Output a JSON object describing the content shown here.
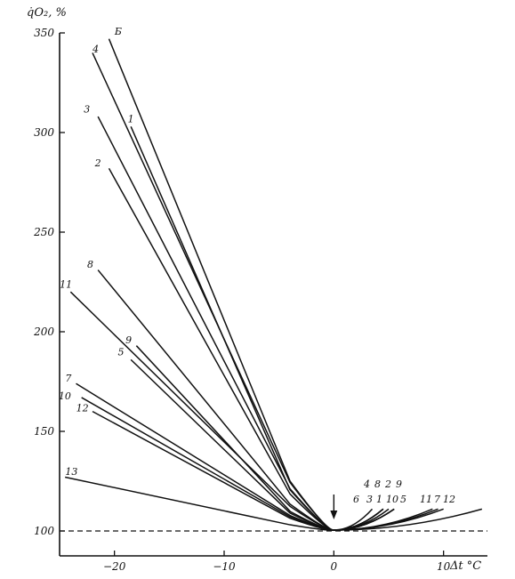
{
  "chart_data": {
    "type": "line",
    "ylabel": "q̇O₂, %",
    "xlabel": "Δt °C",
    "xlim": [
      -25,
      14
    ],
    "ylim": [
      100,
      350
    ],
    "x_ticks": [
      -20,
      -10,
      0,
      10
    ],
    "y_ticks": [
      100,
      150,
      200,
      250,
      300,
      350
    ],
    "x_tick_labels": [
      "−20",
      "−10",
      "0",
      "10"
    ],
    "y_tick_labels": [
      "100",
      "150",
      "200",
      "250",
      "300",
      "350"
    ],
    "baseline": {
      "y": 100,
      "style": "dashed"
    },
    "arrow_at_x": 0,
    "grid": false,
    "series": [
      {
        "name": "1",
        "left": [
          -18.5,
          303
        ],
        "right": [
          4.5,
          111
        ]
      },
      {
        "name": "2",
        "left": [
          -20.5,
          282
        ],
        "right": [
          4.5,
          111
        ]
      },
      {
        "name": "3",
        "left": [
          -21.5,
          308
        ],
        "right": [
          4.5,
          111
        ]
      },
      {
        "name": "4",
        "left": [
          -22,
          340
        ],
        "right": [
          4.5,
          111
        ]
      },
      {
        "name": "5",
        "left": [
          -18.5,
          186
        ],
        "right": [
          5.5,
          111
        ]
      },
      {
        "name": "6",
        "left": [
          -20.5,
          347
        ],
        "right": [
          3.5,
          111
        ]
      },
      {
        "name": "7",
        "left": [
          -23.5,
          174
        ],
        "right": [
          9.5,
          111
        ]
      },
      {
        "name": "8",
        "left": [
          -21.5,
          231
        ],
        "right": [
          5,
          111
        ]
      },
      {
        "name": "9",
        "left": [
          -18,
          193
        ],
        "right": [
          5.5,
          111
        ]
      },
      {
        "name": "10",
        "left": [
          -23,
          167
        ],
        "right": [
          5.5,
          111
        ]
      },
      {
        "name": "11",
        "left": [
          -24,
          220
        ],
        "right": [
          9,
          111
        ]
      },
      {
        "name": "12",
        "left": [
          -22,
          160
        ],
        "right": [
          10,
          111
        ]
      },
      {
        "name": "13",
        "left": [
          -24.5,
          127
        ],
        "right": [
          13.5,
          111
        ]
      }
    ],
    "left_labels": [
      {
        "text": "Б",
        "x": -19.5,
        "y": 350
      },
      {
        "text": "4",
        "x": -21.5,
        "y": 341
      },
      {
        "text": "1",
        "x": -18.3,
        "y": 306
      },
      {
        "text": "3",
        "x": -22.3,
        "y": 311
      },
      {
        "text": "2",
        "x": -21.3,
        "y": 284
      },
      {
        "text": "8",
        "x": -22.0,
        "y": 233
      },
      {
        "text": "11",
        "x": -24.5,
        "y": 223
      },
      {
        "text": "9",
        "x": -18.5,
        "y": 195
      },
      {
        "text": "5",
        "x": -19.2,
        "y": 189
      },
      {
        "text": "7",
        "x": -24.0,
        "y": 176
      },
      {
        "text": "10",
        "x": -24.6,
        "y": 167
      },
      {
        "text": "12",
        "x": -23.0,
        "y": 161
      },
      {
        "text": "13",
        "x": -24.0,
        "y": 129
      }
    ],
    "right_labels_top": [
      "4",
      "8",
      "2",
      "9"
    ],
    "right_labels_mid": [
      "6",
      "3",
      "1",
      "10",
      "5"
    ],
    "right_labels_far": [
      "11",
      "7",
      "12"
    ]
  }
}
